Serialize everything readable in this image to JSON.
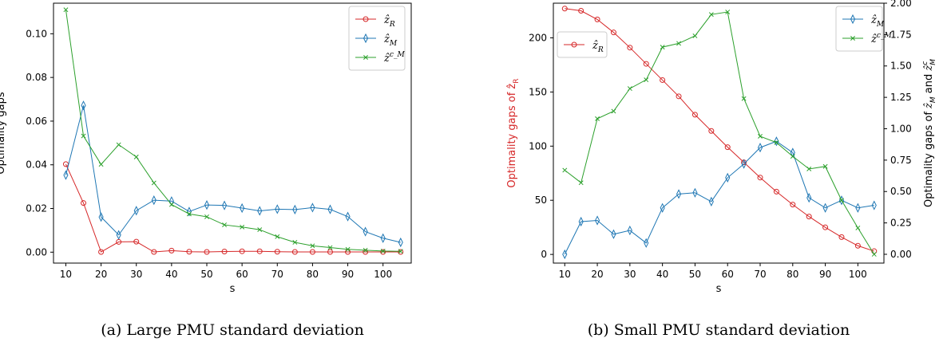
{
  "chart_data": [
    {
      "type": "line",
      "caption": "(a) Large PMU standard deviation",
      "xlabel": "s",
      "ylabel": "Optimality gaps",
      "xlim": [
        6.5,
        108
      ],
      "ylim": [
        -0.005,
        0.114
      ],
      "xticks": [
        10,
        20,
        30,
        40,
        50,
        60,
        70,
        80,
        90,
        100
      ],
      "yticks": [
        0.0,
        0.02,
        0.04,
        0.06,
        0.08,
        0.1
      ],
      "ytick_labels": [
        "0.00",
        "0.02",
        "0.04",
        "0.06",
        "0.08",
        "0.10"
      ],
      "legend_position": "top-right",
      "x": [
        10,
        15,
        20,
        25,
        30,
        35,
        40,
        45,
        50,
        55,
        60,
        65,
        70,
        75,
        80,
        85,
        90,
        95,
        100,
        105
      ],
      "series": [
        {
          "name": "ẑ_R",
          "color": "#d62728",
          "marker": "circle",
          "values": [
            0.0403,
            0.0225,
            0.0001,
            0.0047,
            0.0048,
            0.0001,
            0.0007,
            0.0002,
            0.0001,
            0.0003,
            0.0004,
            0.0004,
            0.0002,
            0.0001,
            0.0001,
            0.0001,
            0.0001,
            0.0001,
            0.0001,
            0.0001
          ]
        },
        {
          "name": "ẑ_M",
          "color": "#1f77b4",
          "marker": "diamond",
          "values": [
            0.0353,
            0.0672,
            0.0161,
            0.0079,
            0.019,
            0.0238,
            0.0234,
            0.0186,
            0.0216,
            0.0214,
            0.0202,
            0.0189,
            0.0197,
            0.0195,
            0.0204,
            0.0196,
            0.0163,
            0.0094,
            0.0064,
            0.0045
          ]
        },
        {
          "name": "ẑ^c_M",
          "color": "#2ca02c",
          "marker": "x",
          "values": [
            0.111,
            0.0532,
            0.0402,
            0.0492,
            0.0436,
            0.0317,
            0.0218,
            0.0175,
            0.0162,
            0.0125,
            0.0115,
            0.0103,
            0.0071,
            0.0045,
            0.0029,
            0.0021,
            0.0013,
            0.0009,
            0.0005,
            0.0004
          ]
        }
      ]
    },
    {
      "type": "line",
      "caption": "(b) Small PMU standard deviation",
      "xlabel": "s",
      "ylabel_left": "Optimality gaps of ẑ_R",
      "ylabel_right": "Optimality gaps of ẑ_M and ẑ^c_M",
      "xlim": [
        6.5,
        108
      ],
      "ylim_left": [
        -8,
        232
      ],
      "ylim_right": [
        -0.07,
        2.0
      ],
      "xticks": [
        10,
        20,
        30,
        40,
        50,
        60,
        70,
        80,
        90,
        100
      ],
      "yticks_left": [
        0,
        50,
        100,
        150,
        200
      ],
      "yticks_right": [
        0.0,
        0.25,
        0.5,
        0.75,
        1.0,
        1.25,
        1.5,
        1.75,
        2.0
      ],
      "ytick_labels_right": [
        "0.00",
        "0.25",
        "0.50",
        "0.75",
        "1.00",
        "1.25",
        "1.50",
        "1.75",
        "2.00"
      ],
      "legend_left_position": "top-left",
      "legend_right_position": "top-right",
      "x": [
        10,
        15,
        20,
        25,
        30,
        35,
        40,
        45,
        50,
        55,
        60,
        65,
        70,
        75,
        80,
        85,
        90,
        95,
        100,
        105
      ],
      "series": [
        {
          "name": "ẑ_R",
          "axis": "left",
          "color": "#d62728",
          "marker": "circle",
          "values": [
            227,
            225,
            217,
            205,
            191,
            176,
            161,
            146,
            129,
            114,
            99,
            85,
            71,
            58,
            46,
            35,
            25,
            16,
            8,
            3
          ]
        },
        {
          "name": "ẑ_M",
          "axis": "right",
          "color": "#1f77b4",
          "marker": "diamond",
          "values": [
            0.0,
            0.26,
            0.27,
            0.16,
            0.19,
            0.09,
            0.37,
            0.48,
            0.49,
            0.42,
            0.61,
            0.72,
            0.85,
            0.9,
            0.81,
            0.45,
            0.37,
            0.43,
            0.37,
            0.39
          ]
        },
        {
          "name": "ẑ^c_M",
          "axis": "right",
          "color": "#2ca02c",
          "marker": "x",
          "values": [
            0.67,
            0.57,
            1.08,
            1.14,
            1.32,
            1.39,
            1.65,
            1.68,
            1.74,
            1.91,
            1.93,
            1.24,
            0.94,
            0.89,
            0.78,
            0.68,
            0.7,
            0.43,
            0.21,
            0.0
          ]
        }
      ]
    }
  ]
}
